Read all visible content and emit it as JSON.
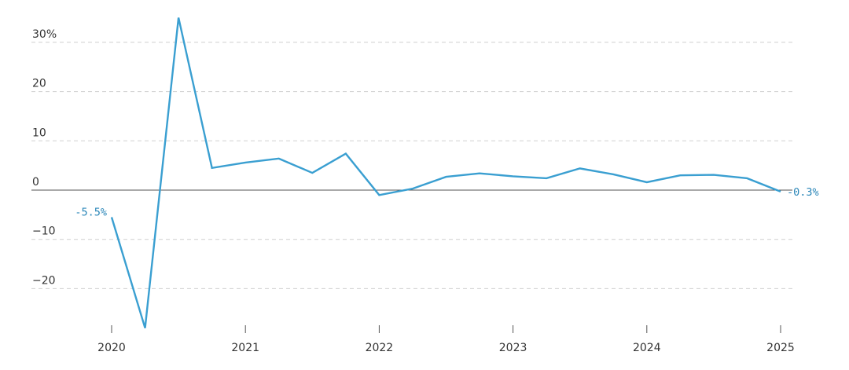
{
  "chart_data": {
    "type": "line",
    "title": "",
    "xlabel": "",
    "ylabel": "",
    "ylim": [
      -28,
      35
    ],
    "xlim": [
      2020,
      2025
    ],
    "grid": true,
    "y_ticks": [
      {
        "value": 30,
        "label": "30%"
      },
      {
        "value": 20,
        "label": "20"
      },
      {
        "value": 10,
        "label": "10"
      },
      {
        "value": 0,
        "label": "0"
      },
      {
        "value": -10,
        "label": "−10"
      },
      {
        "value": -20,
        "label": "−20"
      }
    ],
    "x_ticks": [
      {
        "value": 2020,
        "label": "2020"
      },
      {
        "value": 2021,
        "label": "2021"
      },
      {
        "value": 2022,
        "label": "2022"
      },
      {
        "value": 2023,
        "label": "2023"
      },
      {
        "value": 2024,
        "label": "2024"
      },
      {
        "value": 2025,
        "label": "2025"
      }
    ],
    "series": [
      {
        "color": "#3a9fd1",
        "points": [
          {
            "x": "2020 Q1",
            "y": -5.5
          },
          {
            "x": "2020 Q2",
            "y": -28.0
          },
          {
            "x": "2020 Q3",
            "y": 35.0
          },
          {
            "x": "2020 Q4",
            "y": 4.5
          },
          {
            "x": "2021 Q1",
            "y": 5.6
          },
          {
            "x": "2021 Q2",
            "y": 6.4
          },
          {
            "x": "2021 Q3",
            "y": 3.5
          },
          {
            "x": "2021 Q4",
            "y": 7.4
          },
          {
            "x": "2022 Q1",
            "y": -1.0
          },
          {
            "x": "2022 Q2",
            "y": 0.3
          },
          {
            "x": "2022 Q3",
            "y": 2.7
          },
          {
            "x": "2022 Q4",
            "y": 3.4
          },
          {
            "x": "2023 Q1",
            "y": 2.8
          },
          {
            "x": "2023 Q2",
            "y": 2.4
          },
          {
            "x": "2023 Q3",
            "y": 4.4
          },
          {
            "x": "2023 Q4",
            "y": 3.2
          },
          {
            "x": "2024 Q1",
            "y": 1.6
          },
          {
            "x": "2024 Q2",
            "y": 3.0
          },
          {
            "x": "2024 Q3",
            "y": 3.1
          },
          {
            "x": "2024 Q4",
            "y": 2.4
          },
          {
            "x": "2025 Q1",
            "y": -0.3
          }
        ]
      }
    ],
    "annotations": [
      {
        "label": "-5.5%",
        "point": "2020 Q1",
        "side": "left"
      },
      {
        "label": "-0.3%",
        "point": "2025 Q1",
        "side": "right"
      }
    ]
  }
}
